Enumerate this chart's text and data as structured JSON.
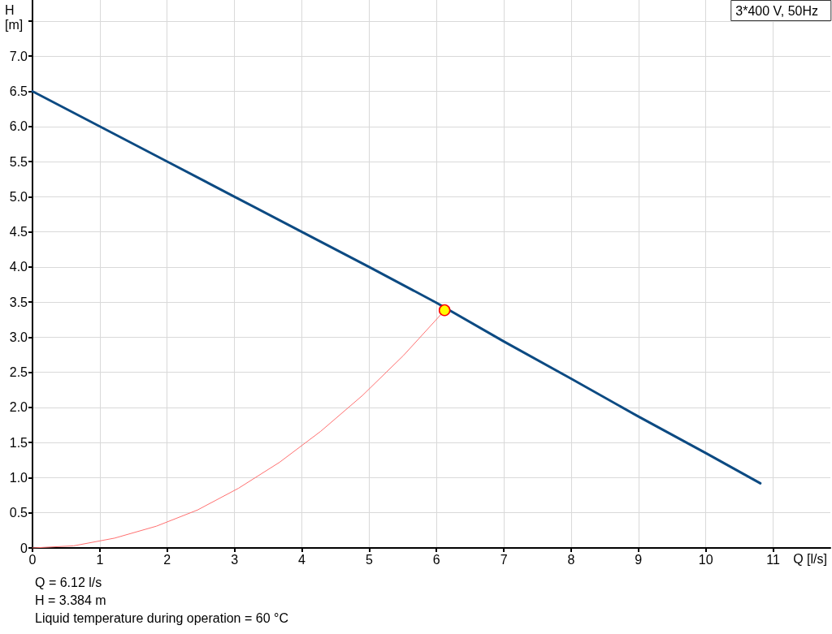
{
  "chart_data": {
    "type": "line",
    "title": "3*400 V, 50Hz",
    "xlabel": "Q [l/s]",
    "ylabel": "H [m]",
    "annotations": [
      "Q = 6.12 l/s",
      "H = 3.384 m",
      "Liquid temperature during operation = 60 °C"
    ],
    "series": [
      {
        "color": "#0c4a82",
        "x": [
          0,
          1,
          2,
          3,
          4,
          5,
          6,
          7,
          8,
          9,
          10,
          10.81
        ],
        "values": [
          6.5,
          6.0,
          5.5,
          5.0,
          4.5,
          4.0,
          3.49,
          2.94,
          2.41,
          1.87,
          1.35,
          0.92
        ]
      },
      {
        "color": "#ff7070",
        "x": [
          0,
          0.61,
          1.22,
          1.84,
          2.45,
          3.06,
          3.67,
          4.28,
          4.9,
          5.51,
          6.12
        ],
        "values": [
          0,
          0.03,
          0.14,
          0.31,
          0.54,
          0.85,
          1.22,
          1.66,
          2.17,
          2.74,
          3.38
        ]
      },
      {
        "type": "scatter",
        "color": "#ffff00",
        "marker": "circle",
        "x": [
          6.12
        ],
        "values": [
          3.384
        ]
      }
    ],
    "xlim": [
      0,
      11.85
    ],
    "xticks": [
      0,
      1,
      2,
      3,
      4,
      5,
      6,
      7,
      8,
      9,
      10,
      11
    ],
    "ylim": [
      0,
      7.8
    ],
    "yticks": [
      0,
      0.5,
      {
        "value": 1,
        "label": "1.0"
      },
      1.5,
      {
        "value": 2,
        "label": "2.0"
      },
      2.5,
      {
        "value": 3,
        "label": "3.0"
      },
      3.5,
      {
        "value": 4,
        "label": "4.0"
      },
      4.5,
      {
        "value": 5,
        "label": "5.0"
      },
      5.5,
      {
        "value": 6,
        "label": "6.0"
      },
      6.5,
      {
        "value": 7,
        "label": "7.0"
      },
      {
        "value": 7.5,
        "label": null
      }
    ],
    "grid": true
  }
}
